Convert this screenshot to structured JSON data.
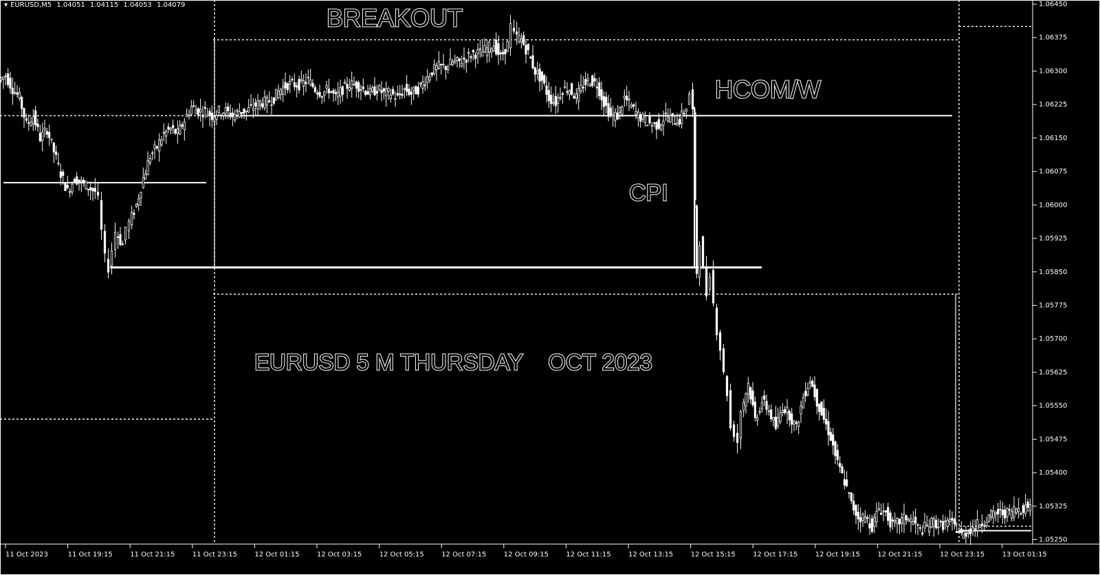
{
  "header": {
    "symbol": "EURUSD,M5",
    "open": "1.04051",
    "high": "1.04115",
    "low": "1.04053",
    "close": "1.04079"
  },
  "colors": {
    "background": "#000000",
    "foreground": "#ffffff"
  },
  "chart_data": {
    "type": "candlestick",
    "title": "EURUSD 5 M THURSDAY    OCT 2023",
    "ylim": [
      1.0524,
      1.0645
    ],
    "y_ticks": [
      "1.06450",
      "1.06375",
      "1.06300",
      "1.06225",
      "1.06150",
      "1.06075",
      "1.06000",
      "1.05925",
      "1.05850",
      "1.05775",
      "1.05700",
      "1.05625",
      "1.05550",
      "1.05475",
      "1.05400",
      "1.05325",
      "1.05250"
    ],
    "x_ticks": [
      "11 Oct 2023",
      "11 Oct 19:15",
      "11 Oct 21:15",
      "11 Oct 23:15",
      "12 Oct 01:15",
      "12 Oct 03:15",
      "12 Oct 05:15",
      "12 Oct 07:15",
      "12 Oct 09:15",
      "12 Oct 11:15",
      "12 Oct 13:15",
      "12 Oct 15:15",
      "12 Oct 17:15",
      "12 Oct 19:15",
      "12 Oct 21:15",
      "12 Oct 23:15",
      "13 Oct 01:15"
    ],
    "price_path": [
      [
        0,
        1.0628
      ],
      [
        10,
        1.0629
      ],
      [
        20,
        1.0626
      ],
      [
        30,
        1.0624
      ],
      [
        40,
        1.0618
      ],
      [
        50,
        1.062
      ],
      [
        60,
        1.0615
      ],
      [
        70,
        1.0617
      ],
      [
        80,
        1.0612
      ],
      [
        90,
        1.0607
      ],
      [
        100,
        1.0603
      ],
      [
        110,
        1.0606
      ],
      [
        120,
        1.0605
      ],
      [
        130,
        1.0604
      ],
      [
        140,
        1.0603
      ],
      [
        145,
        1.0601
      ],
      [
        150,
        1.0594
      ],
      [
        155,
        1.0588
      ],
      [
        160,
        1.0586
      ],
      [
        165,
        1.059
      ],
      [
        170,
        1.0594
      ],
      [
        180,
        1.0591
      ],
      [
        185,
        1.0595
      ],
      [
        190,
        1.0596
      ],
      [
        200,
        1.06
      ],
      [
        210,
        1.0606
      ],
      [
        220,
        1.0611
      ],
      [
        230,
        1.0613
      ],
      [
        240,
        1.0616
      ],
      [
        250,
        1.0617
      ],
      [
        260,
        1.0616
      ],
      [
        270,
        1.0619
      ],
      [
        280,
        1.0622
      ],
      [
        290,
        1.0621
      ],
      [
        300,
        1.0621
      ],
      [
        310,
        1.062
      ],
      [
        320,
        1.0621
      ],
      [
        330,
        1.0621
      ],
      [
        340,
        1.062
      ],
      [
        350,
        1.0621
      ],
      [
        360,
        1.0621
      ],
      [
        370,
        1.0622
      ],
      [
        380,
        1.0623
      ],
      [
        390,
        1.0623
      ],
      [
        400,
        1.0624
      ],
      [
        410,
        1.0626
      ],
      [
        420,
        1.0627
      ],
      [
        430,
        1.0627
      ],
      [
        440,
        1.0627
      ],
      [
        450,
        1.0628
      ],
      [
        460,
        1.0626
      ],
      [
        470,
        1.0625
      ],
      [
        480,
        1.0626
      ],
      [
        490,
        1.0624
      ],
      [
        500,
        1.0626
      ],
      [
        510,
        1.0627
      ],
      [
        520,
        1.0627
      ],
      [
        530,
        1.0626
      ],
      [
        540,
        1.0625
      ],
      [
        550,
        1.0626
      ],
      [
        560,
        1.0625
      ],
      [
        570,
        1.0625
      ],
      [
        580,
        1.0624
      ],
      [
        590,
        1.0626
      ],
      [
        600,
        1.0625
      ],
      [
        610,
        1.0626
      ],
      [
        620,
        1.0628
      ],
      [
        630,
        1.063
      ],
      [
        640,
        1.0631
      ],
      [
        650,
        1.0631
      ],
      [
        660,
        1.0632
      ],
      [
        670,
        1.0632
      ],
      [
        680,
        1.0633
      ],
      [
        690,
        1.0634
      ],
      [
        700,
        1.0634
      ],
      [
        710,
        1.0635
      ],
      [
        720,
        1.0636
      ],
      [
        730,
        1.0633
      ],
      [
        740,
        1.0636
      ],
      [
        745,
        1.064
      ],
      [
        750,
        1.0638
      ],
      [
        760,
        1.0637
      ],
      [
        770,
        1.0634
      ],
      [
        780,
        1.063
      ],
      [
        790,
        1.0628
      ],
      [
        800,
        1.0624
      ],
      [
        810,
        1.0623
      ],
      [
        820,
        1.0626
      ],
      [
        830,
        1.0626
      ],
      [
        840,
        1.0624
      ],
      [
        850,
        1.0627
      ],
      [
        860,
        1.0628
      ],
      [
        870,
        1.0627
      ],
      [
        880,
        1.0623
      ],
      [
        890,
        1.062
      ],
      [
        900,
        1.062
      ],
      [
        910,
        1.0624
      ],
      [
        920,
        1.0622
      ],
      [
        930,
        1.062
      ],
      [
        940,
        1.0619
      ],
      [
        950,
        1.0618
      ],
      [
        960,
        1.0618
      ],
      [
        970,
        1.062
      ],
      [
        980,
        1.0619
      ],
      [
        990,
        1.0619
      ],
      [
        1000,
        1.0622
      ],
      [
        1005,
        1.0625
      ],
      [
        1010,
        1.0621
      ],
      [
        1012,
        1.06
      ],
      [
        1015,
        1.0585
      ],
      [
        1020,
        1.0592
      ],
      [
        1025,
        1.0585
      ],
      [
        1030,
        1.058
      ],
      [
        1035,
        1.0585
      ],
      [
        1040,
        1.0578
      ],
      [
        1045,
        1.0572
      ],
      [
        1050,
        1.0568
      ],
      [
        1055,
        1.0562
      ],
      [
        1060,
        1.0558
      ],
      [
        1065,
        1.055
      ],
      [
        1070,
        1.0549
      ],
      [
        1075,
        1.0547
      ],
      [
        1080,
        1.0554
      ],
      [
        1090,
        1.056
      ],
      [
        1100,
        1.0552
      ],
      [
        1110,
        1.0556
      ],
      [
        1120,
        1.0554
      ],
      [
        1130,
        1.055
      ],
      [
        1140,
        1.0555
      ],
      [
        1150,
        1.0553
      ],
      [
        1160,
        1.055
      ],
      [
        1170,
        1.0557
      ],
      [
        1180,
        1.0561
      ],
      [
        1190,
        1.0556
      ],
      [
        1200,
        1.0552
      ],
      [
        1210,
        1.0548
      ],
      [
        1220,
        1.0542
      ],
      [
        1230,
        1.0538
      ],
      [
        1240,
        1.0533
      ],
      [
        1250,
        1.053
      ],
      [
        1260,
        1.053
      ],
      [
        1270,
        1.0528
      ],
      [
        1280,
        1.0532
      ],
      [
        1290,
        1.0531
      ],
      [
        1300,
        1.0528
      ],
      [
        1310,
        1.0529
      ],
      [
        1320,
        1.053
      ],
      [
        1330,
        1.0529
      ],
      [
        1340,
        1.0527
      ],
      [
        1350,
        1.0528
      ],
      [
        1360,
        1.0529
      ],
      [
        1370,
        1.0528
      ],
      [
        1380,
        1.0529
      ],
      [
        1390,
        1.0528
      ],
      [
        1400,
        1.0526
      ],
      [
        1410,
        1.0527
      ],
      [
        1420,
        1.0528
      ],
      [
        1430,
        1.0529
      ],
      [
        1440,
        1.053
      ],
      [
        1450,
        1.0531
      ],
      [
        1460,
        1.0531
      ],
      [
        1470,
        1.0531
      ],
      [
        1480,
        1.0532
      ],
      [
        1490,
        1.0532
      ],
      [
        1500,
        1.0533
      ]
    ],
    "levels": [
      {
        "price": 1.062,
        "from": 0,
        "to": 310,
        "style": "dotted"
      },
      {
        "price": 1.062,
        "from": 310,
        "to": 1385,
        "style": "solid"
      },
      {
        "price": 1.0605,
        "from": 5,
        "to": 300,
        "style": "solid"
      },
      {
        "price": 1.0586,
        "from": 160,
        "to": 1108,
        "style": "solid-thick"
      },
      {
        "price": 1.0637,
        "from": 310,
        "to": 1395,
        "style": "dotted"
      },
      {
        "price": 1.058,
        "from": 310,
        "to": 1395,
        "style": "dotted"
      },
      {
        "price": 1.0552,
        "from": 0,
        "to": 310,
        "style": "dotted"
      },
      {
        "price": 1.064,
        "from": 1395,
        "to": 1500,
        "style": "dotted"
      },
      {
        "price": 1.0528,
        "from": 1395,
        "to": 1500,
        "style": "dotted"
      },
      {
        "price": 1.0527,
        "from": 1395,
        "to": 1500,
        "style": "solid"
      }
    ],
    "annotations": [
      {
        "text": "BREAKOUT",
        "x": 475,
        "y_price": 1.064
      },
      {
        "text": "HCOM/W",
        "x": 1040,
        "y_price": 1.0624
      },
      {
        "text": "CPI",
        "x": 915,
        "y_price": 1.0601
      },
      {
        "text": "EURUSD 5 M THURSDAY    OCT 2023",
        "x": 370,
        "y_price": 1.0563
      }
    ]
  }
}
